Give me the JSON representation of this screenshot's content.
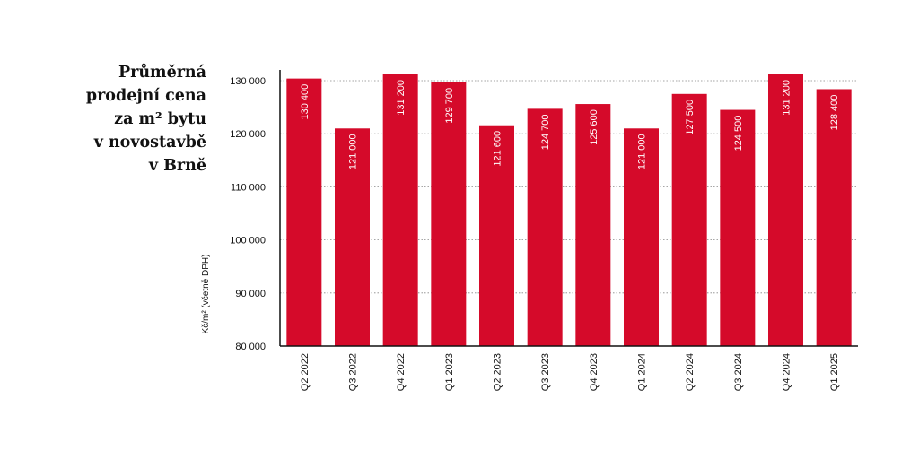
{
  "title_lines": [
    "Průměrná",
    "prodejní cena",
    "za m² bytu",
    "v novostavbě",
    "v Brně"
  ],
  "colors": {
    "bar": "#d50a2a",
    "axis": "#111111",
    "grid": "#888888",
    "label": "#ffffff"
  },
  "chart_data": {
    "type": "bar",
    "title": "Průměrná prodejní cena za m² bytu v novostavbě v Brně",
    "ylabel": "Kč/m² (včetně DPH)",
    "xlabel": "",
    "ylim": [
      80000,
      130000
    ],
    "yticks": [
      80000,
      90000,
      100000,
      110000,
      120000,
      130000
    ],
    "ytick_labels": [
      "80 000",
      "90 000",
      "100 000",
      "110 000",
      "120 000",
      "130 000"
    ],
    "grid": "horizontal dotted",
    "categories": [
      "Q2 2022",
      "Q3 2022",
      "Q4 2022",
      "Q1 2023",
      "Q2 2023",
      "Q3 2023",
      "Q4 2023",
      "Q1 2024",
      "Q2 2024",
      "Q3 2024",
      "Q4 2024",
      "Q1 2025"
    ],
    "values": [
      130400,
      121000,
      131200,
      129700,
      121600,
      124700,
      125600,
      121000,
      127500,
      124500,
      131200,
      128400
    ],
    "value_labels": [
      "130 400",
      "121 000",
      "131 200",
      "129 700",
      "121 600",
      "124 700",
      "125 600",
      "121 000",
      "127 500",
      "124 500",
      "131 200",
      "128 400"
    ]
  }
}
